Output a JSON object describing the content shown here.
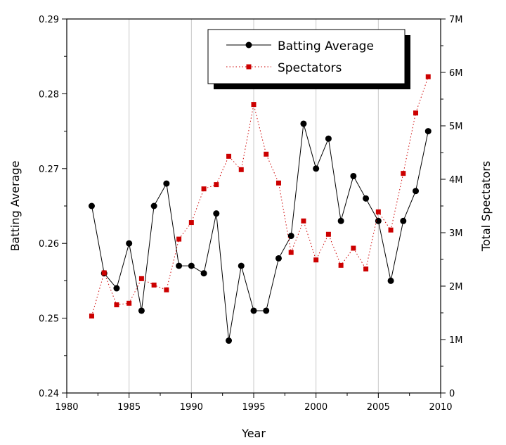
{
  "chart_data": {
    "type": "line",
    "xlabel": "Year",
    "ylabel": "Batting Average",
    "y2label": "Total Spectators",
    "xlim": [
      1980,
      2010
    ],
    "xticks": [
      "1980",
      "1985",
      "1990",
      "1995",
      "2000",
      "2005",
      "2010"
    ],
    "ylim": [
      0.24,
      0.29
    ],
    "yticks": [
      "0.24",
      "0.25",
      "0.26",
      "0.27",
      "0.28",
      "0.29"
    ],
    "y2lim": [
      0,
      7000000
    ],
    "y2ticks": [
      "0",
      "1M",
      "2M",
      "3M",
      "4M",
      "5M",
      "6M",
      "7M"
    ],
    "grid": "vertical at major x ticks",
    "legend_position": "top-right",
    "x": [
      1982,
      1983,
      1984,
      1985,
      1986,
      1987,
      1988,
      1989,
      1990,
      1991,
      1992,
      1993,
      1994,
      1995,
      1996,
      1997,
      1998,
      1999,
      2000,
      2001,
      2002,
      2003,
      2004,
      2005,
      2006,
      2007,
      2008,
      2009
    ],
    "series": [
      {
        "name": "Batting Average",
        "axis": "left",
        "color": "#000000",
        "marker": "circle",
        "line": "solid",
        "values": [
          0.265,
          0.256,
          0.254,
          0.26,
          0.251,
          0.265,
          0.268,
          0.257,
          0.257,
          0.256,
          0.264,
          0.247,
          0.257,
          0.251,
          0.251,
          0.258,
          0.261,
          0.276,
          0.27,
          0.274,
          0.263,
          0.269,
          0.266,
          0.263,
          0.255,
          0.263,
          0.267,
          0.275
        ]
      },
      {
        "name": "Spectators",
        "axis": "right",
        "color": "#cc0000",
        "marker": "square",
        "line": "dotted",
        "values": [
          1440000,
          2250000,
          1650000,
          1680000,
          2140000,
          2020000,
          1930000,
          2880000,
          3190000,
          3820000,
          3900000,
          4430000,
          4180000,
          5400000,
          4470000,
          3930000,
          2630000,
          3220000,
          2490000,
          2970000,
          2390000,
          2710000,
          2320000,
          3390000,
          3050000,
          4110000,
          5240000,
          5920000
        ]
      }
    ]
  }
}
